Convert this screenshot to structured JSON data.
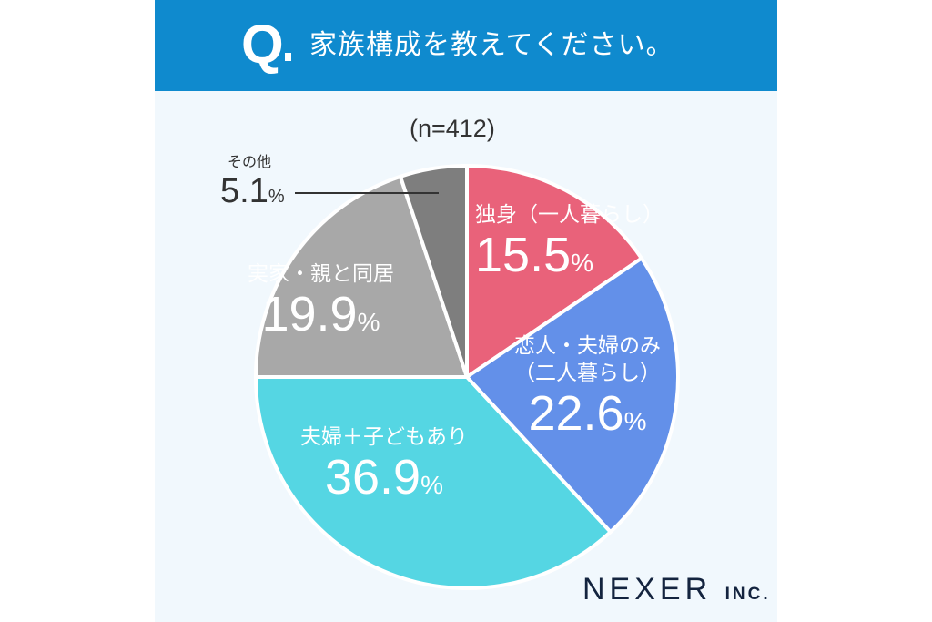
{
  "header": {
    "q_mark": "Q",
    "title": "家族構成を教えてください。"
  },
  "sample": "(n=412)",
  "slices": [
    {
      "label": "独身（一人暮らし）",
      "pct": "15.5",
      "unit": "%",
      "color": "#e9627a"
    },
    {
      "label_line1": "恋人・夫婦のみ",
      "label_line2": "（二人暮らし）",
      "pct": "22.6",
      "unit": "%",
      "color": "#6390e9"
    },
    {
      "label": "夫婦＋子どもあり",
      "pct": "36.9",
      "unit": "%",
      "color": "#55d6e3"
    },
    {
      "label": "実家・親と同居",
      "pct": "19.9",
      "unit": "%",
      "color": "#a8a8a8"
    },
    {
      "label": "その他",
      "pct": "5.1",
      "unit": "%",
      "color": "#7e7e7e"
    }
  ],
  "logo": {
    "main": "NEXER",
    "suffix": "INC."
  },
  "chart_data": {
    "type": "pie",
    "title": "家族構成を教えてください。",
    "subtitle": "(n=412)",
    "categories": [
      "独身（一人暮らし）",
      "恋人・夫婦のみ（二人暮らし）",
      "夫婦＋子どもあり",
      "実家・親と同居",
      "その他"
    ],
    "values": [
      15.5,
      22.6,
      36.9,
      19.9,
      5.1
    ],
    "colors": [
      "#e9627a",
      "#6390e9",
      "#55d6e3",
      "#a8a8a8",
      "#7e7e7e"
    ],
    "unit": "%",
    "start_angle": "12 o'clock, clockwise",
    "legend": "none (labels inside slices)"
  }
}
